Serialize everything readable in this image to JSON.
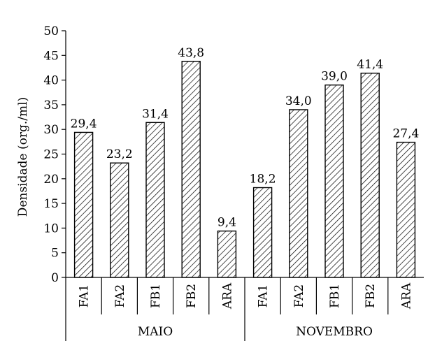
{
  "chart_data": {
    "type": "bar",
    "ylabel": "Densidade (org./ml)",
    "ylim": [
      0,
      50
    ],
    "yticks": [
      0,
      5,
      10,
      15,
      20,
      25,
      30,
      35,
      40,
      45,
      50
    ],
    "groups": [
      {
        "name": "MAIO",
        "bars": [
          {
            "category": "FA1",
            "value": 29.4,
            "label": "29,4"
          },
          {
            "category": "FA2",
            "value": 23.2,
            "label": "23,2"
          },
          {
            "category": "FB1",
            "value": 31.4,
            "label": "31,4"
          },
          {
            "category": "FB2",
            "value": 43.8,
            "label": "43,8"
          },
          {
            "category": "ARA",
            "value": 9.4,
            "label": "9,4"
          }
        ]
      },
      {
        "name": "NOVEMBRO",
        "bars": [
          {
            "category": "FA1",
            "value": 18.2,
            "label": "18,2"
          },
          {
            "category": "FA2",
            "value": 34.0,
            "label": "34,0"
          },
          {
            "category": "FB1",
            "value": 39.0,
            "label": "39,0"
          },
          {
            "category": "FB2",
            "value": 41.4,
            "label": "41,4"
          },
          {
            "category": "ARA",
            "value": 27.4,
            "label": "27,4"
          }
        ]
      }
    ],
    "bar_fill": "diagonal-hatch",
    "grid": false,
    "legend": "none"
  }
}
